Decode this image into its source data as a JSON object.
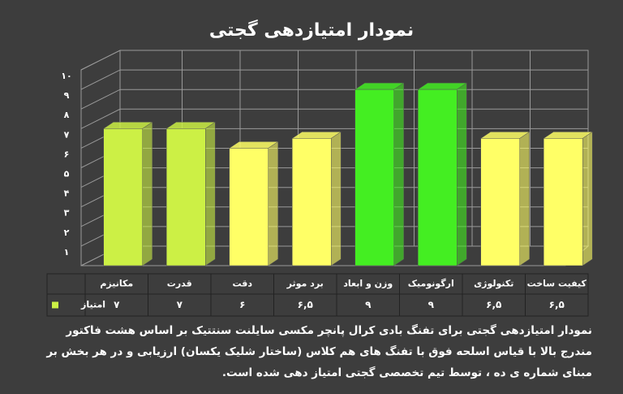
{
  "chart_data": {
    "type": "bar3d",
    "title": "نمودار امتیازدهی گجتی",
    "categories": [
      "مکانیزم",
      "قدرت",
      "دقت",
      "برد موثر",
      "وزن و ابعاد",
      "ارگونومیک",
      "تکنولوژی",
      "کیفیت ساخت"
    ],
    "series": [
      {
        "name": "امتیاز",
        "color": "#ccf045",
        "values": [
          7,
          7,
          6,
          6.5,
          9,
          9,
          6.5,
          6.5
        ],
        "value_labels": [
          "۷",
          "۷",
          "۶",
          "۶,۵",
          "۹",
          "۹",
          "۶,۵",
          "۶,۵"
        ],
        "colors": [
          "#ccf045",
          "#ccf045",
          "#ffff66",
          "#ffff66",
          "#44ee22",
          "#44ee22",
          "#ffff66",
          "#ffff66"
        ]
      }
    ],
    "ylim": [
      0,
      10
    ],
    "yticks": [
      {
        "value": 1,
        "label": "۱"
      },
      {
        "value": 2,
        "label": "۲"
      },
      {
        "value": 3,
        "label": "۳"
      },
      {
        "value": 4,
        "label": "۴"
      },
      {
        "value": 5,
        "label": "۵"
      },
      {
        "value": 6,
        "label": "۶"
      },
      {
        "value": 7,
        "label": "۷"
      },
      {
        "value": 8,
        "label": "۸"
      },
      {
        "value": 9,
        "label": "۹"
      },
      {
        "value": 10,
        "label": "۱۰"
      }
    ],
    "grid": true,
    "caption": "نمودار امتیازدهی گجتی برای تفنگ بادی کرال پانچر مکسی سایلنت سنتتیک بر اساس هشت فاکتور مندرج بالا با قیاس اسلحه فوق با تفنگ های هم کلاس (ساختار شلیک یکسان) ارزیابی و در هر بخش بر مبنای شماره ی ده ، توسط تیم تخصصی گجتی امتیاز دهی شده است."
  }
}
